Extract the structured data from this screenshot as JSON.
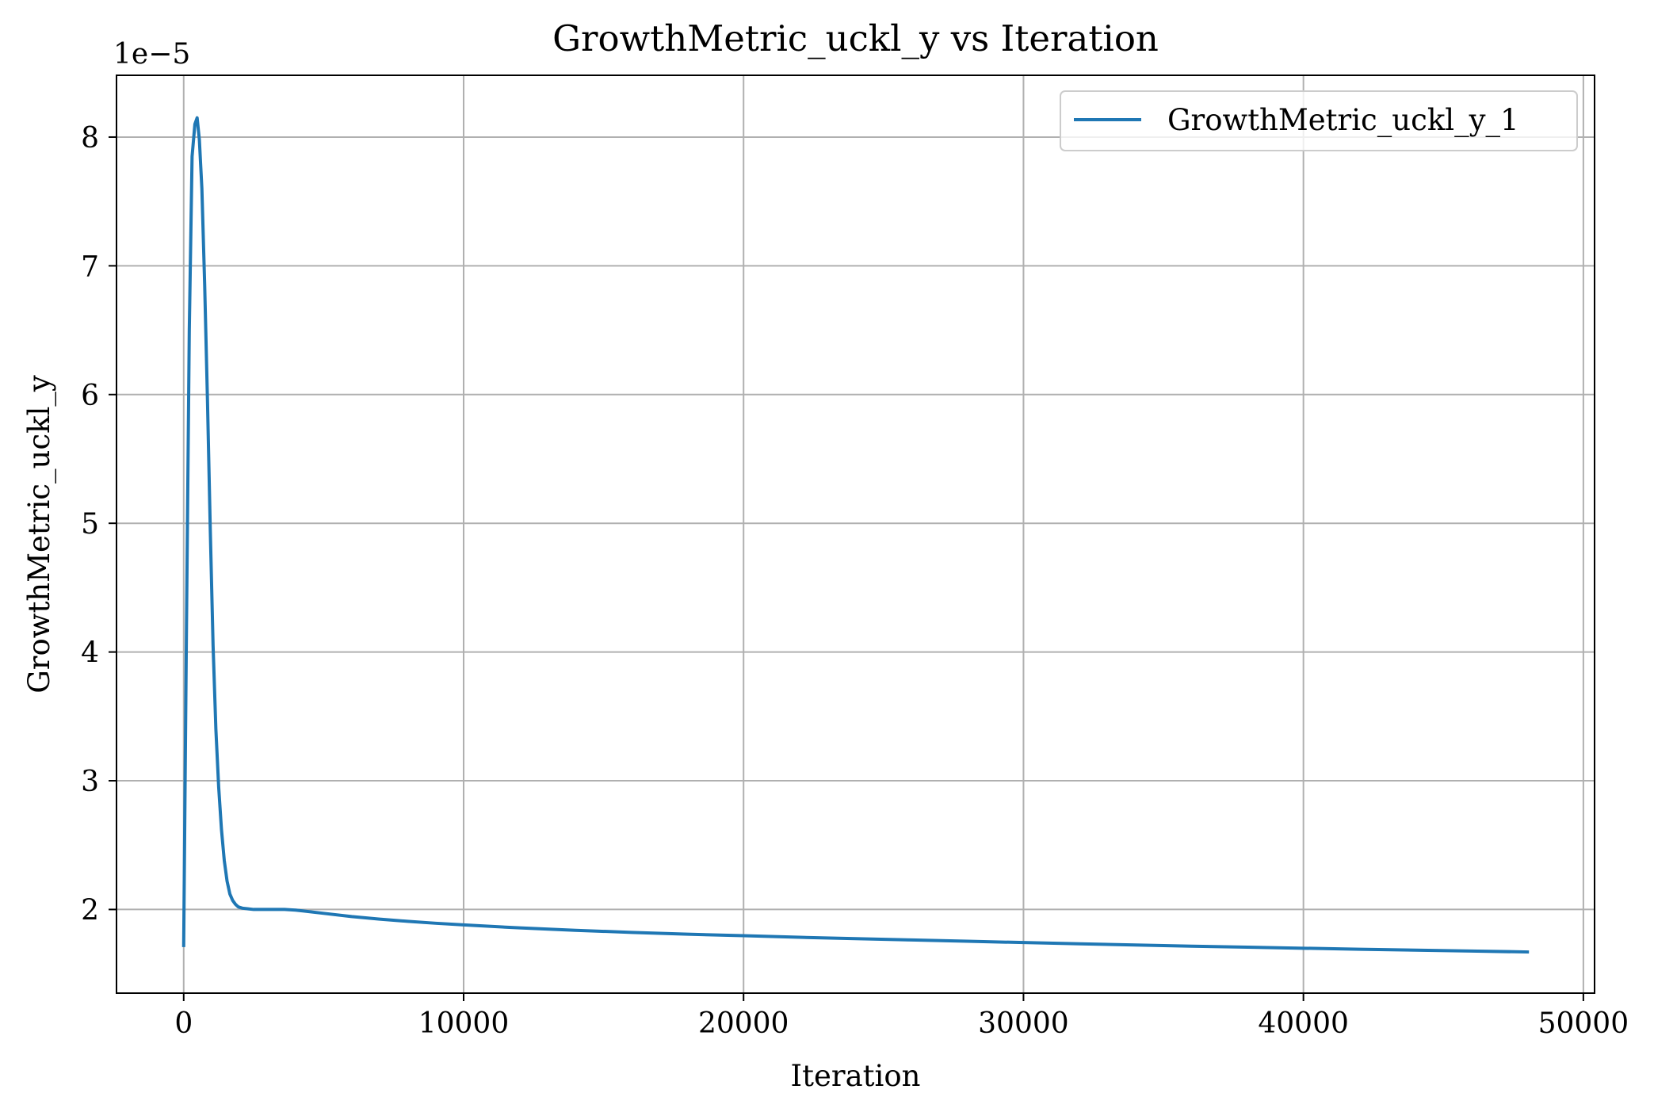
{
  "chart_data": {
    "type": "line",
    "title": "GrowthMetric_uckl_y vs Iteration",
    "xlabel": "Iteration",
    "ylabel": "GrowthMetric_uckl_y",
    "y_offset_label": "1e−5",
    "y_scale_factor": 1e-05,
    "xlim": [
      -2400,
      50400
    ],
    "ylim": [
      1.35e-05,
      8.48e-05
    ],
    "x_ticks": [
      0,
      10000,
      20000,
      30000,
      40000,
      50000
    ],
    "x_tick_labels": [
      "0",
      "10000",
      "20000",
      "30000",
      "40000",
      "50000"
    ],
    "y_ticks": [
      2e-05,
      3e-05,
      4e-05,
      5e-05,
      6e-05,
      7e-05,
      8e-05
    ],
    "y_tick_labels": [
      "2",
      "3",
      "4",
      "5",
      "6",
      "7",
      "8"
    ],
    "grid": true,
    "legend_position": "top-right",
    "series": [
      {
        "name": "GrowthMetric_uckl_y_1",
        "color": "#1f77b4",
        "x": [
          0,
          100,
          200,
          300,
          400,
          480,
          560,
          650,
          750,
          850,
          950,
          1050,
          1150,
          1250,
          1350,
          1450,
          1550,
          1650,
          1750,
          1850,
          1950,
          2100,
          2300,
          2500,
          2800,
          3200,
          3600,
          4000,
          5000,
          6000,
          7000,
          8000,
          9000,
          10000,
          12000,
          14000,
          16000,
          18000,
          20000,
          22000,
          24000,
          26000,
          28000,
          30000,
          32000,
          34000,
          36000,
          38000,
          40000,
          42000,
          44000,
          46000,
          48000
        ],
        "y": [
          1.72e-05,
          4.2e-05,
          6.5e-05,
          7.85e-05,
          8.1e-05,
          8.15e-05,
          7.98e-05,
          7.6e-05,
          6.85e-05,
          5.95e-05,
          4.95e-05,
          4.05e-05,
          3.4e-05,
          2.95e-05,
          2.62e-05,
          2.38e-05,
          2.22e-05,
          2.12e-05,
          2.07e-05,
          2.04e-05,
          2.02e-05,
          2.01e-05,
          2.005e-05,
          2e-05,
          2e-05,
          2e-05,
          2e-05,
          1.995e-05,
          1.97e-05,
          1.945e-05,
          1.925e-05,
          1.908e-05,
          1.893e-05,
          1.88e-05,
          1.857e-05,
          1.838e-05,
          1.822e-05,
          1.808e-05,
          1.796e-05,
          1.784e-05,
          1.773e-05,
          1.763e-05,
          1.753e-05,
          1.743e-05,
          1.733e-05,
          1.724e-05,
          1.715e-05,
          1.707e-05,
          1.699e-05,
          1.691e-05,
          1.684e-05,
          1.677e-05,
          1.67e-05
        ]
      }
    ]
  }
}
